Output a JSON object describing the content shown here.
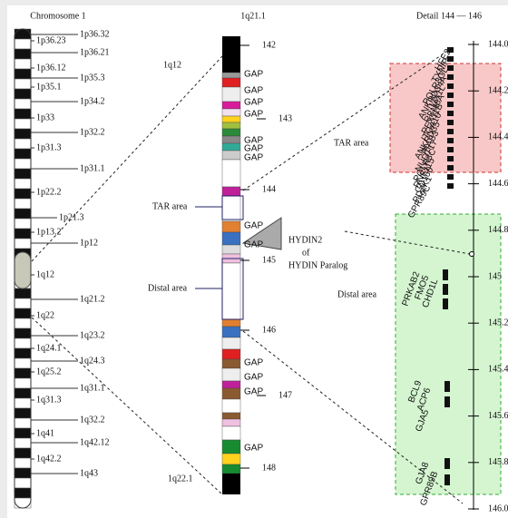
{
  "titles": {
    "left": "Chromosome 1",
    "middle": "1q21.1",
    "right": "Detail 144 — 146"
  },
  "chromosome_bands": [
    "1p36.32",
    "1p36.23",
    "1p36.21",
    "1p36.12",
    "1p35.3",
    "1p35.1",
    "1p34.2",
    "1p33",
    "1p32.2",
    "1p31.3",
    "1p31.1",
    "1p22.2",
    "1p21.3",
    "1p13.2",
    "1p12",
    "1q12",
    "1q21.2",
    "1q22",
    "1q23.2",
    "1q24.1",
    "1q24.3",
    "1q25.2",
    "1q31.1",
    "1q31.3",
    "1q32.2",
    "1q41",
    "1q42.12",
    "1q42.2",
    "1q43"
  ],
  "region": {
    "top_band": "1q12",
    "bottom_band": "1q22.1",
    "ticks": [
      "142",
      "143",
      "144",
      "145",
      "146",
      "147",
      "148"
    ],
    "gaps": [
      "GAP",
      "GAP",
      "GAP",
      "GAP",
      "GAP",
      "GAP",
      "GAP",
      "GAP",
      "GAP",
      "GAP",
      "GAP",
      "GAP",
      "GAP"
    ],
    "tar_label": "TAR area",
    "distal_label": "Distal area",
    "hydin_label": [
      "HYDIN2",
      "of",
      "HYDIN Paralog"
    ]
  },
  "detail": {
    "ticks": [
      "144.0",
      "144.2",
      "144.4",
      "144.6",
      "144.8",
      "145",
      "145.2",
      "145.4",
      "145.6",
      "145.8",
      "146.0"
    ],
    "tar_label": "TAR area",
    "distal_label": "Distal area",
    "tar_genes": [
      "HFE2",
      "TXNIP",
      "POLR3GL",
      "ANKRD34A",
      "LIX1L",
      "RBM8A",
      "PEX11B",
      "ITGA10",
      "ANKRD35",
      "PIAS3",
      "NUDT17",
      "POLR3C",
      "RNF115",
      "CD160",
      "PDZK1",
      "GPR89C"
    ],
    "distal_genes": [
      "PRKAB2",
      "FMO5",
      "CHD1L",
      "BCL9",
      "ACP6",
      "GJA5",
      "GJA8",
      "GPR89B"
    ]
  }
}
